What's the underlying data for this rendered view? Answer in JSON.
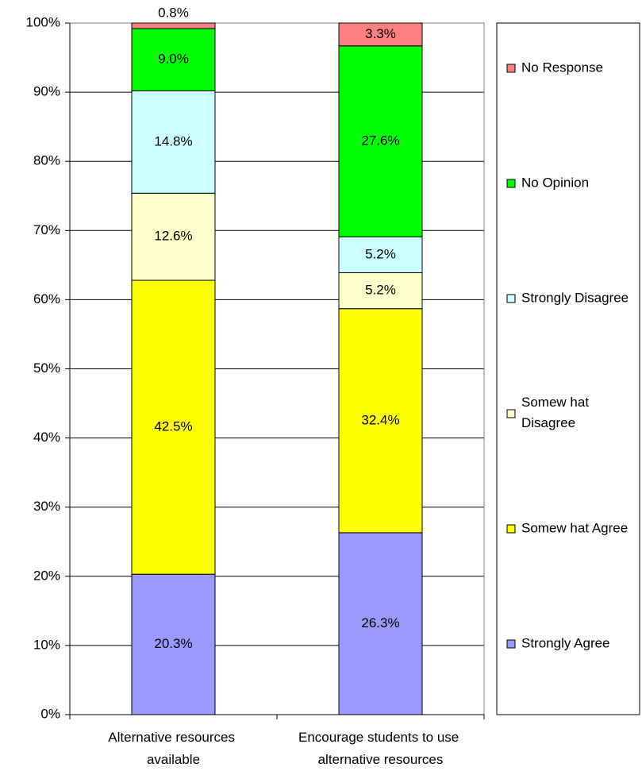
{
  "chart_data": {
    "type": "stacked_bar",
    "categories": [
      "Alternative resources available",
      "Encourage students to use alternative resources"
    ],
    "series": [
      {
        "name": "Strongly Agree",
        "color": "#9999ff",
        "values": [
          20.3,
          26.3
        ],
        "value_labels": [
          "20.3%",
          "26.3%"
        ]
      },
      {
        "name": "Somew hat Agree",
        "color": "#ffff00",
        "values": [
          42.5,
          32.4
        ],
        "value_labels": [
          "42.5%",
          "32.4%"
        ]
      },
      {
        "name": "Somew hat Disagree",
        "color": "#ffffcc",
        "values": [
          12.6,
          5.2
        ],
        "value_labels": [
          "12.6%",
          "5.2%"
        ]
      },
      {
        "name": "Strongly Disagree",
        "color": "#ccffff",
        "values": [
          14.8,
          5.2
        ],
        "value_labels": [
          "14.8%",
          "5.2%"
        ]
      },
      {
        "name": "No Opinion",
        "color": "#00ff00",
        "values": [
          9.0,
          27.6
        ],
        "value_labels": [
          "9.0%",
          "27.6%"
        ]
      },
      {
        "name": "No Response",
        "color": "#ff8080",
        "values": [
          0.8,
          3.3
        ],
        "value_labels": [
          "0.8%",
          "3.3%"
        ]
      }
    ],
    "ylim": [
      0,
      100
    ],
    "yticks": [
      {
        "value": 0,
        "label": "0%"
      },
      {
        "value": 10,
        "label": "10%"
      },
      {
        "value": 20,
        "label": "20%"
      },
      {
        "value": 30,
        "label": "30%"
      },
      {
        "value": 40,
        "label": "40%"
      },
      {
        "value": 50,
        "label": "50%"
      },
      {
        "value": 60,
        "label": "60%"
      },
      {
        "value": 70,
        "label": "70%"
      },
      {
        "value": 80,
        "label": "80%"
      },
      {
        "value": 90,
        "label": "90%"
      },
      {
        "value": 100,
        "label": "100%"
      }
    ],
    "grid": true,
    "legend": "right"
  }
}
